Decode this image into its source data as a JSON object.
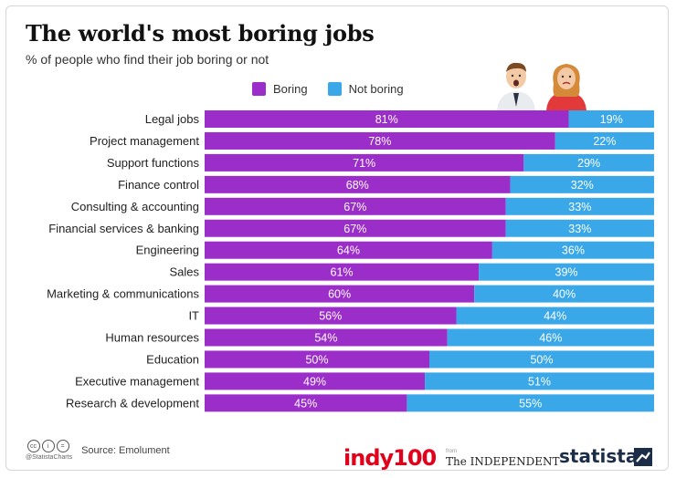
{
  "title": "The world's most boring jobs",
  "subtitle": "% of people who find their job boring or not",
  "colors": {
    "boring": "#9b2ec9",
    "not_boring": "#3aa7e8"
  },
  "legend": {
    "boring": "Boring",
    "not_boring": "Not boring"
  },
  "chart_data": {
    "type": "bar",
    "orientation": "horizontal",
    "stacked": true,
    "title": "The world's most boring jobs",
    "subtitle": "% of people who find their job boring or not",
    "legend_position": "top",
    "xlim": [
      0,
      100
    ],
    "categories": [
      "Legal jobs",
      "Project management",
      "Support functions",
      "Finance control",
      "Consulting & accounting",
      "Financial services & banking",
      "Engineering",
      "Sales",
      "Marketing & communications",
      "IT",
      "Human resources",
      "Education",
      "Executive management",
      "Research & development"
    ],
    "series": [
      {
        "name": "Boring",
        "values": [
          81,
          78,
          71,
          68,
          67,
          67,
          64,
          61,
          60,
          56,
          54,
          50,
          49,
          45
        ]
      },
      {
        "name": "Not boring",
        "values": [
          19,
          22,
          29,
          32,
          33,
          33,
          36,
          39,
          40,
          44,
          46,
          50,
          51,
          55
        ]
      }
    ],
    "value_suffix": "%"
  },
  "footer": {
    "cc_handle": "@StatistaCharts",
    "source": "Source: Emolument",
    "indy100": "indy100",
    "from": "from",
    "independent": "The INDEPENDENT",
    "statista": "statista"
  },
  "icons": [
    "creative-commons-icon",
    "attribution-icon",
    "no-derivatives-icon",
    "man-avatar-icon",
    "woman-avatar-icon",
    "statista-logo-icon"
  ]
}
